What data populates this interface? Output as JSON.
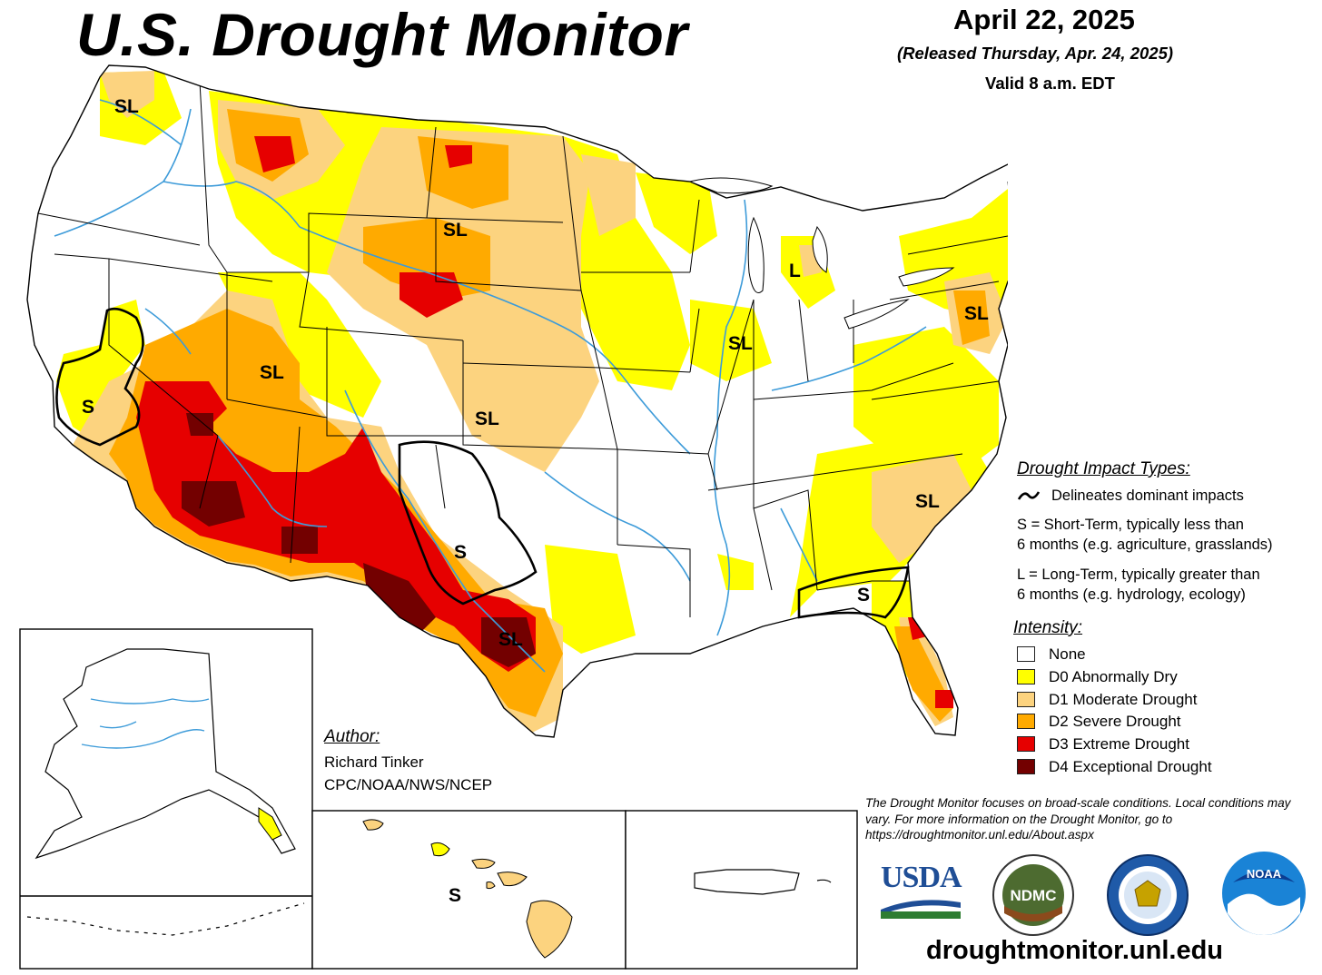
{
  "header": {
    "title": "U.S. Drought Monitor",
    "date": "April 22, 2025",
    "released": "(Released Thursday, Apr. 24, 2025)",
    "valid": "Valid 8 a.m. EDT"
  },
  "map_labels": {
    "pacific_nw": "SL",
    "northern_plains": "SL",
    "southwest_great_basin": "SL",
    "central_plains": "SL",
    "midwest": "SL",
    "michigan": "L",
    "mid_atlantic": "SL",
    "california_coastal": "S",
    "texas_panhandle": "S",
    "south_texas": "SL",
    "carolinas": "SL",
    "georgia_florida": "S",
    "hawaii": "S"
  },
  "legend": {
    "impact_heading": "Drought Impact Types:",
    "delineates": "Delineates dominant impacts",
    "short_term_line1": "S = Short-Term, typically less than",
    "short_term_line2": "6 months (e.g. agriculture, grasslands)",
    "long_term_line1": "L = Long-Term, typically greater than",
    "long_term_line2": "6 months (e.g. hydrology, ecology)",
    "intensity_heading": "Intensity:",
    "categories": [
      {
        "label": "None",
        "color": "#ffffff"
      },
      {
        "label": "D0 Abnormally Dry",
        "color": "#ffff00"
      },
      {
        "label": "D1 Moderate Drought",
        "color": "#fcd37f"
      },
      {
        "label": "D2 Severe Drought",
        "color": "#ffaa00"
      },
      {
        "label": "D3 Extreme Drought",
        "color": "#e60000"
      },
      {
        "label": "D4 Exceptional Drought",
        "color": "#730000"
      }
    ]
  },
  "author": {
    "heading": "Author:",
    "name": "Richard Tinker",
    "org": "CPC/NOAA/NWS/NCEP"
  },
  "disclaimer": "The Drought Monitor focuses on broad-scale conditions. Local conditions may vary. For more information on the Drought Monitor, go to https://droughtmonitor.unl.edu/About.aspx",
  "logos": {
    "usda": "USDA",
    "ndmc": "NDMC",
    "noaa": "NOAA"
  },
  "website": "droughtmonitor.unl.edu",
  "colors": {
    "river": "#3d9bd9",
    "border": "#000000"
  }
}
